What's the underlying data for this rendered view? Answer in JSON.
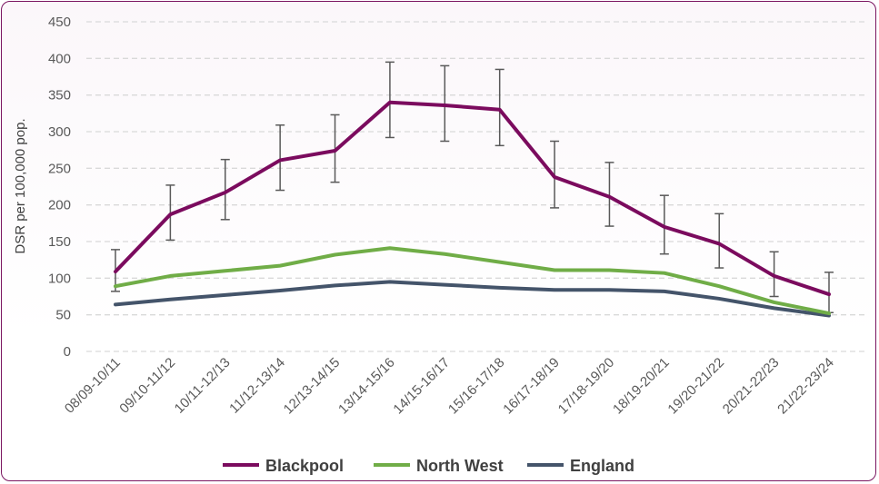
{
  "chart_data": {
    "type": "line",
    "title": "",
    "xlabel": "",
    "ylabel": "DSR per 100,000 pop.",
    "ylim": [
      0,
      450
    ],
    "yticks": [
      0,
      50,
      100,
      150,
      200,
      250,
      300,
      350,
      400,
      450
    ],
    "grid": true,
    "legend_position": "bottom",
    "categories": [
      "08/09-10/11",
      "09/10-11/12",
      "10/11-12/13",
      "11/12-13/14",
      "12/13-14/15",
      "13/14-15/16",
      "14/15-16/17",
      "15/16-17/18",
      "16/17-18/19",
      "17/18-19/20",
      "18/19-20/21",
      "19/20-21/22",
      "20/21-22/23",
      "21/22-23/24"
    ],
    "series": [
      {
        "name": "Blackpool",
        "color": "#7b0b5e",
        "values": [
          109,
          187,
          217,
          261,
          274,
          340,
          336,
          330,
          238,
          211,
          170,
          147,
          103,
          78
        ],
        "ci_upper": [
          139,
          227,
          262,
          309,
          323,
          395,
          390,
          385,
          287,
          258,
          213,
          188,
          136,
          108
        ],
        "ci_lower": [
          82,
          152,
          180,
          220,
          231,
          292,
          287,
          281,
          196,
          171,
          133,
          114,
          75,
          53
        ]
      },
      {
        "name": "North West",
        "color": "#70ad47",
        "values": [
          89,
          103,
          110,
          117,
          132,
          141,
          133,
          122,
          111,
          111,
          107,
          89,
          67,
          52
        ]
      },
      {
        "name": "England",
        "color": "#44546a",
        "values": [
          64,
          71,
          77,
          83,
          90,
          95,
          91,
          87,
          84,
          84,
          82,
          72,
          59,
          49
        ]
      }
    ]
  }
}
